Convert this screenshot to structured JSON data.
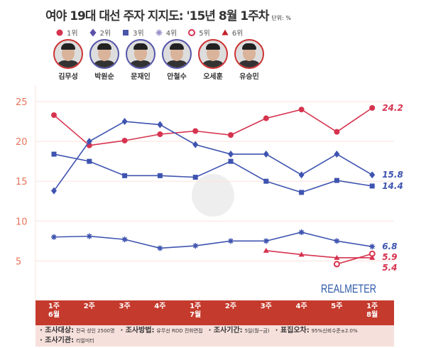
{
  "title": "여야 19대 대선 주자 지지도: '15년 8월 1주차",
  "unit": "단위: %",
  "legend": [
    {
      "label": "1위",
      "marker": "circle",
      "color": "#d6334f"
    },
    {
      "label": "2위",
      "marker": "diamond",
      "color": "#5a4fa8"
    },
    {
      "label": "3위",
      "marker": "square",
      "color": "#4a55a8"
    },
    {
      "label": "4위",
      "marker": "asterisk",
      "color": "#9a8fc8"
    },
    {
      "label": "5위",
      "marker": "hollow-circle",
      "color": "#d6334f"
    },
    {
      "label": "6위",
      "marker": "triangle",
      "color": "#c8202a"
    }
  ],
  "people": [
    {
      "name": "김무성",
      "border": "red"
    },
    {
      "name": "박원순",
      "border": "blue"
    },
    {
      "name": "문재인",
      "border": "blue"
    },
    {
      "name": "안철수",
      "border": "blue"
    },
    {
      "name": "오세훈",
      "border": "red"
    },
    {
      "name": "유승민",
      "border": "red"
    }
  ],
  "chart_data": {
    "type": "line",
    "categories": [
      [
        "1주",
        "6월"
      ],
      [
        "2주",
        ""
      ],
      [
        "3주",
        ""
      ],
      [
        "4주",
        ""
      ],
      [
        "1주",
        "7월"
      ],
      [
        "2주",
        ""
      ],
      [
        "3주",
        ""
      ],
      [
        "4주",
        ""
      ],
      [
        "5주",
        ""
      ],
      [
        "1주",
        "8월"
      ]
    ],
    "yticks": [
      5,
      10,
      15,
      20,
      25
    ],
    "ylim": [
      3,
      27
    ],
    "grid": true,
    "series": [
      {
        "name": "1위",
        "marker": "circle",
        "color": "#d6334f",
        "values": [
          23.3,
          19.5,
          20.1,
          20.9,
          21.3,
          20.8,
          22.9,
          24.0,
          21.2,
          24.2
        ],
        "end_label": "24.2"
      },
      {
        "name": "2위",
        "marker": "diamond",
        "color": "#3f54b0",
        "values": [
          13.8,
          20.0,
          22.5,
          22.1,
          19.6,
          18.4,
          18.4,
          15.8,
          18.4,
          15.8
        ],
        "end_label": "15.8"
      },
      {
        "name": "3위",
        "marker": "square",
        "color": "#3f54b0",
        "values": [
          18.4,
          17.5,
          15.7,
          15.7,
          15.5,
          17.5,
          15.0,
          13.6,
          15.1,
          14.4
        ],
        "end_label": "14.4"
      },
      {
        "name": "4위",
        "marker": "asterisk",
        "color": "#3f54b0",
        "values": [
          8.0,
          8.1,
          7.7,
          6.6,
          6.9,
          7.5,
          7.5,
          8.6,
          7.5,
          6.8
        ],
        "end_label": "6.8"
      },
      {
        "name": "5위",
        "marker": "hollow-circle",
        "color": "#d6334f",
        "values": [
          null,
          null,
          null,
          null,
          null,
          null,
          null,
          null,
          4.6,
          5.9
        ],
        "end_label": "5.9"
      },
      {
        "name": "6위",
        "marker": "triangle",
        "color": "#d6334f",
        "values": [
          null,
          null,
          null,
          null,
          null,
          null,
          6.3,
          5.8,
          5.4,
          5.4
        ],
        "end_label": "5.4"
      }
    ]
  },
  "logo": "REALMETER",
  "footer": [
    {
      "key": "· 조사대상:",
      "val": "전국 성인 2500명"
    },
    {
      "key": "· 조사방법:",
      "val": "유무선 RDD 전화면접"
    },
    {
      "key": "· 조사기간:",
      "val": "5일(월~금)"
    },
    {
      "key": "· 표집오차:",
      "val": "95%신뢰수준±2.0%"
    },
    {
      "key": "· 조사기관:",
      "val": "리얼미터"
    }
  ]
}
